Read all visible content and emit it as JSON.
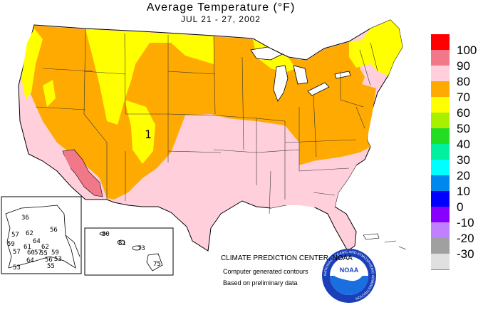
{
  "title": "Average Temperature (°F)",
  "subtitle": "JUL 21 - 27, 2002",
  "legend": [
    {
      "label": "100",
      "color": "#ff0000"
    },
    {
      "label": "90",
      "color": "#f07888"
    },
    {
      "label": "80",
      "color": "#ffd0dc"
    },
    {
      "label": "70",
      "color": "#ffaa00"
    },
    {
      "label": "60",
      "color": "#ffff00"
    },
    {
      "label": "50",
      "color": "#a8f000"
    },
    {
      "label": "40",
      "color": "#22dd22"
    },
    {
      "label": "30",
      "color": "#00f0a0"
    },
    {
      "label": "20",
      "color": "#00ffff"
    },
    {
      "label": "10",
      "color": "#0088ee"
    },
    {
      "label": "0",
      "color": "#0000ff"
    },
    {
      "label": "-10",
      "color": "#8800ff"
    },
    {
      "label": "-20",
      "color": "#c080ff"
    },
    {
      "label": "-30",
      "color": "#a0a0a0"
    }
  ],
  "legend_bottom_color": "#e0e0e0",
  "alaska_values": [
    "36",
    "56",
    "57",
    "62",
    "64",
    "59",
    "61",
    "57",
    "60",
    "57",
    "62",
    "55",
    "59",
    "64",
    "56",
    "53",
    "55",
    "53"
  ],
  "hawaii_values": [
    "80",
    "81",
    "73",
    "75"
  ],
  "contour_labels": [
    "1"
  ],
  "credits": {
    "center": "CLIMATE PREDICTION CENTER, NOAA",
    "contours": "Computer generated contours",
    "preliminary": "Based on preliminary data"
  },
  "logo": {
    "text": "NOAA",
    "ring_text": "NATIONAL OCEANIC AND ATMOSPHERIC ADMINISTRATION"
  }
}
